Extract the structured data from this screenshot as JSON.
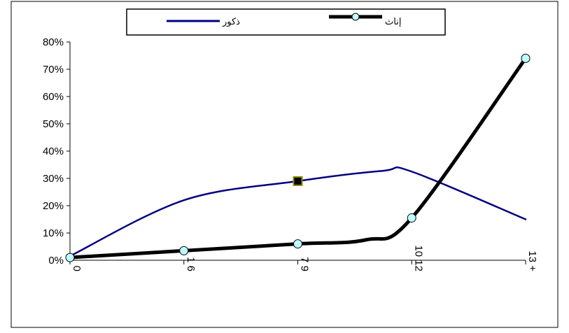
{
  "chart_data": {
    "type": "line",
    "title": "",
    "xlabel": "",
    "ylabel": "",
    "x_tick_labels": [
      "0",
      "1 6",
      "7 9",
      "10 12",
      "13 +"
    ],
    "x_positions": [
      0,
      1,
      2,
      3,
      4
    ],
    "ylim": [
      0,
      80
    ],
    "y_ticks": [
      0,
      10,
      20,
      30,
      40,
      50,
      60,
      70,
      80
    ],
    "y_tick_labels": [
      "0%",
      "10%",
      "20%",
      "30%",
      "40%",
      "50%",
      "60%",
      "70%",
      "80%"
    ],
    "grid": false,
    "legend_position": "top-center",
    "series": [
      {
        "name": "ذكور",
        "color": "#000080",
        "marker": "square",
        "marked_points": [
          2
        ],
        "values": [
          1.5,
          22,
          29,
          32.5,
          15
        ],
        "extra_points": [
          {
            "x": 2.75,
            "y": 32.8
          }
        ]
      },
      {
        "name": "إناث",
        "color": "#000000",
        "marker": "circle",
        "marked_points": [
          0,
          1,
          2,
          3,
          4
        ],
        "values": [
          1,
          3.5,
          6,
          15.5,
          74
        ],
        "extra_points": [
          {
            "x": 2.6,
            "y": 7.5
          }
        ]
      }
    ]
  }
}
